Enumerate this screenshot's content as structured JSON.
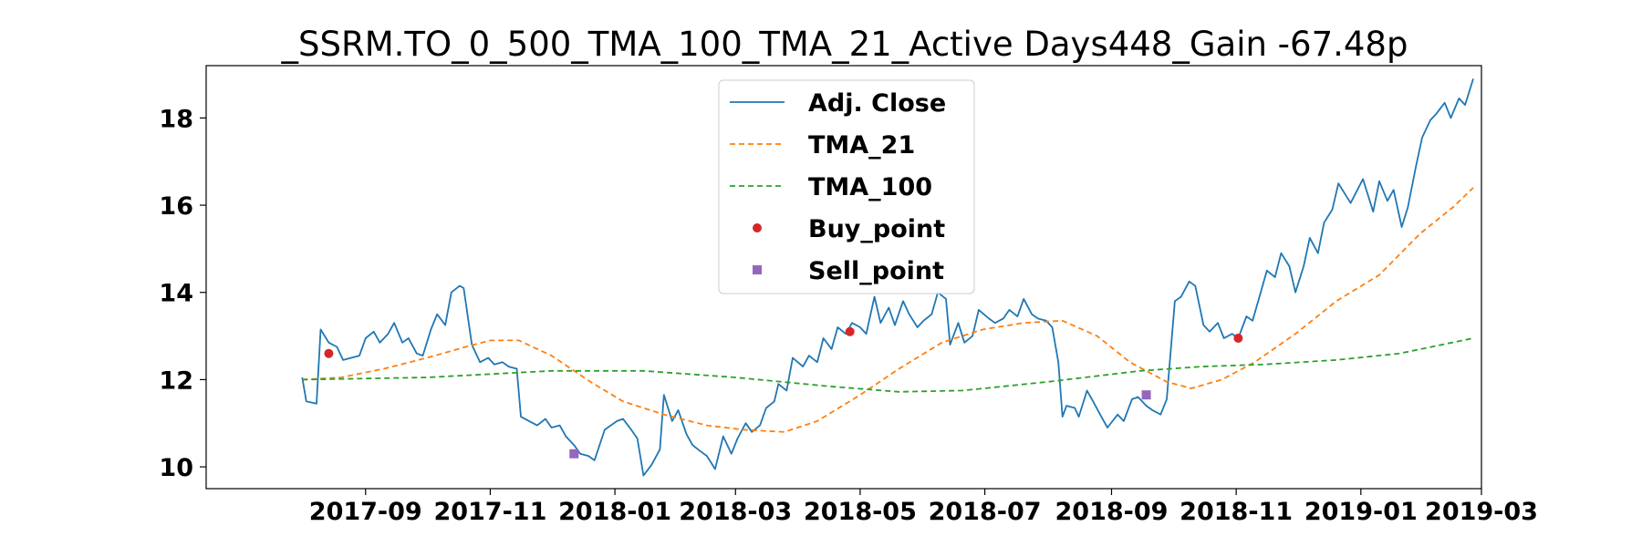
{
  "chart_data": {
    "type": "line",
    "title": "_SSRM.TO_0_500_TMA_100_TMA_21_Active Days448_Gain -67.48p",
    "xlabel": "",
    "ylabel": "",
    "x_range": [
      "2017-06-15",
      "2019-03-01"
    ],
    "ylim": [
      9.5,
      19.2
    ],
    "grid": false,
    "legend_position": "top-center",
    "y_ticks": [
      10,
      12,
      14,
      16,
      18
    ],
    "x_ticks": [
      "2017-09",
      "2017-11",
      "2018-01",
      "2018-03",
      "2018-05",
      "2018-07",
      "2018-09",
      "2018-11",
      "2019-01",
      "2019-03"
    ],
    "series": [
      {
        "name": "Adj. Close",
        "color": "#1f77b4",
        "style": "solid",
        "points": [
          [
            "2017-08-01",
            12.05
          ],
          [
            "2017-08-03",
            11.5
          ],
          [
            "2017-08-08",
            11.45
          ],
          [
            "2017-08-10",
            13.15
          ],
          [
            "2017-08-14",
            12.85
          ],
          [
            "2017-08-18",
            12.75
          ],
          [
            "2017-08-21",
            12.45
          ],
          [
            "2017-08-25",
            12.5
          ],
          [
            "2017-08-29",
            12.55
          ],
          [
            "2017-09-01",
            12.95
          ],
          [
            "2017-09-05",
            13.1
          ],
          [
            "2017-09-08",
            12.85
          ],
          [
            "2017-09-12",
            13.05
          ],
          [
            "2017-09-15",
            13.3
          ],
          [
            "2017-09-19",
            12.85
          ],
          [
            "2017-09-22",
            12.95
          ],
          [
            "2017-09-26",
            12.6
          ],
          [
            "2017-09-29",
            12.55
          ],
          [
            "2017-10-03",
            13.15
          ],
          [
            "2017-10-06",
            13.5
          ],
          [
            "2017-10-10",
            13.25
          ],
          [
            "2017-10-13",
            14.0
          ],
          [
            "2017-10-17",
            14.15
          ],
          [
            "2017-10-19",
            14.1
          ],
          [
            "2017-10-23",
            12.8
          ],
          [
            "2017-10-27",
            12.4
          ],
          [
            "2017-10-31",
            12.5
          ],
          [
            "2017-11-03",
            12.35
          ],
          [
            "2017-11-07",
            12.4
          ],
          [
            "2017-11-10",
            12.3
          ],
          [
            "2017-11-14",
            12.25
          ],
          [
            "2017-11-16",
            11.15
          ],
          [
            "2017-11-20",
            11.05
          ],
          [
            "2017-11-24",
            10.95
          ],
          [
            "2017-11-28",
            11.1
          ],
          [
            "2017-12-01",
            10.9
          ],
          [
            "2017-12-05",
            10.95
          ],
          [
            "2017-12-08",
            10.7
          ],
          [
            "2017-12-12",
            10.5
          ],
          [
            "2017-12-15",
            10.3
          ],
          [
            "2017-12-19",
            10.25
          ],
          [
            "2017-12-22",
            10.15
          ],
          [
            "2017-12-27",
            10.85
          ],
          [
            "2018-01-02",
            11.05
          ],
          [
            "2018-01-05",
            11.1
          ],
          [
            "2018-01-09",
            10.85
          ],
          [
            "2018-01-12",
            10.65
          ],
          [
            "2018-01-15",
            9.8
          ],
          [
            "2018-01-19",
            10.05
          ],
          [
            "2018-01-23",
            10.4
          ],
          [
            "2018-01-25",
            11.65
          ],
          [
            "2018-01-29",
            11.05
          ],
          [
            "2018-02-01",
            11.3
          ],
          [
            "2018-02-05",
            10.75
          ],
          [
            "2018-02-08",
            10.5
          ],
          [
            "2018-02-12",
            10.35
          ],
          [
            "2018-02-15",
            10.25
          ],
          [
            "2018-02-19",
            9.95
          ],
          [
            "2018-02-23",
            10.7
          ],
          [
            "2018-02-27",
            10.3
          ],
          [
            "2018-03-02",
            10.65
          ],
          [
            "2018-03-06",
            11.0
          ],
          [
            "2018-03-09",
            10.8
          ],
          [
            "2018-03-13",
            10.95
          ],
          [
            "2018-03-16",
            11.35
          ],
          [
            "2018-03-20",
            11.5
          ],
          [
            "2018-03-22",
            11.9
          ],
          [
            "2018-03-26",
            11.75
          ],
          [
            "2018-03-29",
            12.5
          ],
          [
            "2018-04-03",
            12.3
          ],
          [
            "2018-04-06",
            12.55
          ],
          [
            "2018-04-10",
            12.4
          ],
          [
            "2018-04-13",
            12.95
          ],
          [
            "2018-04-17",
            12.7
          ],
          [
            "2018-04-20",
            13.2
          ],
          [
            "2018-04-24",
            13.05
          ],
          [
            "2018-04-27",
            13.3
          ],
          [
            "2018-05-01",
            13.2
          ],
          [
            "2018-05-04",
            13.05
          ],
          [
            "2018-05-08",
            13.9
          ],
          [
            "2018-05-11",
            13.3
          ],
          [
            "2018-05-15",
            13.65
          ],
          [
            "2018-05-18",
            13.25
          ],
          [
            "2018-05-22",
            13.8
          ],
          [
            "2018-05-25",
            13.5
          ],
          [
            "2018-05-29",
            13.2
          ],
          [
            "2018-06-01",
            13.35
          ],
          [
            "2018-06-05",
            13.5
          ],
          [
            "2018-06-08",
            14.0
          ],
          [
            "2018-06-12",
            13.85
          ],
          [
            "2018-06-14",
            12.8
          ],
          [
            "2018-06-18",
            13.3
          ],
          [
            "2018-06-21",
            12.85
          ],
          [
            "2018-06-25",
            13.0
          ],
          [
            "2018-06-28",
            13.6
          ],
          [
            "2018-07-03",
            13.4
          ],
          [
            "2018-07-06",
            13.3
          ],
          [
            "2018-07-10",
            13.4
          ],
          [
            "2018-07-13",
            13.6
          ],
          [
            "2018-07-17",
            13.45
          ],
          [
            "2018-07-20",
            13.85
          ],
          [
            "2018-07-24",
            13.5
          ],
          [
            "2018-07-27",
            13.4
          ],
          [
            "2018-07-31",
            13.35
          ],
          [
            "2018-08-03",
            13.2
          ],
          [
            "2018-08-06",
            12.4
          ],
          [
            "2018-08-08",
            11.15
          ],
          [
            "2018-08-10",
            11.4
          ],
          [
            "2018-08-14",
            11.35
          ],
          [
            "2018-08-16",
            11.15
          ],
          [
            "2018-08-20",
            11.75
          ],
          [
            "2018-08-23",
            11.5
          ],
          [
            "2018-08-27",
            11.15
          ],
          [
            "2018-08-30",
            10.9
          ],
          [
            "2018-09-04",
            11.2
          ],
          [
            "2018-09-07",
            11.05
          ],
          [
            "2018-09-11",
            11.55
          ],
          [
            "2018-09-14",
            11.6
          ],
          [
            "2018-09-18",
            11.4
          ],
          [
            "2018-09-21",
            11.3
          ],
          [
            "2018-09-25",
            11.2
          ],
          [
            "2018-09-28",
            11.55
          ],
          [
            "2018-10-02",
            13.8
          ],
          [
            "2018-10-05",
            13.9
          ],
          [
            "2018-10-09",
            14.25
          ],
          [
            "2018-10-12",
            14.15
          ],
          [
            "2018-10-16",
            13.25
          ],
          [
            "2018-10-19",
            13.1
          ],
          [
            "2018-10-23",
            13.3
          ],
          [
            "2018-10-26",
            12.95
          ],
          [
            "2018-10-30",
            13.05
          ],
          [
            "2018-11-02",
            12.95
          ],
          [
            "2018-11-06",
            13.45
          ],
          [
            "2018-11-09",
            13.35
          ],
          [
            "2018-11-13",
            14.0
          ],
          [
            "2018-11-16",
            14.5
          ],
          [
            "2018-11-20",
            14.35
          ],
          [
            "2018-11-23",
            14.9
          ],
          [
            "2018-11-27",
            14.6
          ],
          [
            "2018-11-30",
            14.0
          ],
          [
            "2018-12-04",
            14.6
          ],
          [
            "2018-12-07",
            15.25
          ],
          [
            "2018-12-11",
            14.9
          ],
          [
            "2018-12-14",
            15.6
          ],
          [
            "2018-12-18",
            15.9
          ],
          [
            "2018-12-21",
            16.5
          ],
          [
            "2018-12-27",
            16.05
          ],
          [
            "2019-01-02",
            16.6
          ],
          [
            "2019-01-07",
            15.85
          ],
          [
            "2019-01-10",
            16.55
          ],
          [
            "2019-01-14",
            16.1
          ],
          [
            "2019-01-17",
            16.35
          ],
          [
            "2019-01-21",
            15.5
          ],
          [
            "2019-01-24",
            15.95
          ],
          [
            "2019-01-28",
            16.9
          ],
          [
            "2019-01-31",
            17.55
          ],
          [
            "2019-02-04",
            17.95
          ],
          [
            "2019-02-07",
            18.1
          ],
          [
            "2019-02-11",
            18.35
          ],
          [
            "2019-02-14",
            18.0
          ],
          [
            "2019-02-18",
            18.45
          ],
          [
            "2019-02-21",
            18.3
          ],
          [
            "2019-02-25",
            18.9
          ]
        ]
      },
      {
        "name": "TMA_21",
        "color": "#ff7f0e",
        "style": "dashed",
        "points": [
          [
            "2017-08-01",
            12.0
          ],
          [
            "2017-08-20",
            12.05
          ],
          [
            "2017-09-10",
            12.25
          ],
          [
            "2017-10-01",
            12.5
          ],
          [
            "2017-10-20",
            12.75
          ],
          [
            "2017-11-01",
            12.9
          ],
          [
            "2017-11-15",
            12.9
          ],
          [
            "2017-12-01",
            12.55
          ],
          [
            "2017-12-20",
            11.95
          ],
          [
            "2018-01-05",
            11.5
          ],
          [
            "2018-01-25",
            11.2
          ],
          [
            "2018-02-15",
            10.95
          ],
          [
            "2018-03-05",
            10.85
          ],
          [
            "2018-03-25",
            10.8
          ],
          [
            "2018-04-10",
            11.05
          ],
          [
            "2018-05-01",
            11.65
          ],
          [
            "2018-05-20",
            12.25
          ],
          [
            "2018-06-10",
            12.85
          ],
          [
            "2018-06-30",
            13.15
          ],
          [
            "2018-07-20",
            13.3
          ],
          [
            "2018-08-08",
            13.35
          ],
          [
            "2018-08-25",
            13.0
          ],
          [
            "2018-09-10",
            12.4
          ],
          [
            "2018-09-28",
            11.95
          ],
          [
            "2018-10-10",
            11.8
          ],
          [
            "2018-10-25",
            12.0
          ],
          [
            "2018-11-10",
            12.4
          ],
          [
            "2018-11-30",
            13.05
          ],
          [
            "2018-12-20",
            13.8
          ],
          [
            "2019-01-10",
            14.4
          ],
          [
            "2019-01-30",
            15.35
          ],
          [
            "2019-02-15",
            15.95
          ],
          [
            "2019-02-25",
            16.4
          ]
        ]
      },
      {
        "name": "TMA_100",
        "color": "#2ca02c",
        "style": "dashed",
        "points": [
          [
            "2017-08-01",
            12.0
          ],
          [
            "2017-10-01",
            12.05
          ],
          [
            "2017-12-01",
            12.2
          ],
          [
            "2018-01-15",
            12.2
          ],
          [
            "2018-03-01",
            12.05
          ],
          [
            "2018-04-15",
            11.85
          ],
          [
            "2018-05-20",
            11.72
          ],
          [
            "2018-06-20",
            11.75
          ],
          [
            "2018-08-01",
            11.95
          ],
          [
            "2018-09-15",
            12.2
          ],
          [
            "2018-10-15",
            12.3
          ],
          [
            "2018-11-15",
            12.35
          ],
          [
            "2018-12-20",
            12.45
          ],
          [
            "2019-01-20",
            12.6
          ],
          [
            "2019-02-25",
            12.95
          ]
        ]
      },
      {
        "name": "Buy_point",
        "color": "#d62728",
        "style": "marker-circle",
        "points": [
          [
            "2017-08-14",
            12.6
          ],
          [
            "2018-04-26",
            13.1
          ],
          [
            "2018-11-02",
            12.95
          ]
        ]
      },
      {
        "name": "Sell_point",
        "color": "#9467bd",
        "style": "marker-square",
        "points": [
          [
            "2017-12-12",
            10.3
          ],
          [
            "2018-09-18",
            11.65
          ]
        ]
      }
    ]
  }
}
